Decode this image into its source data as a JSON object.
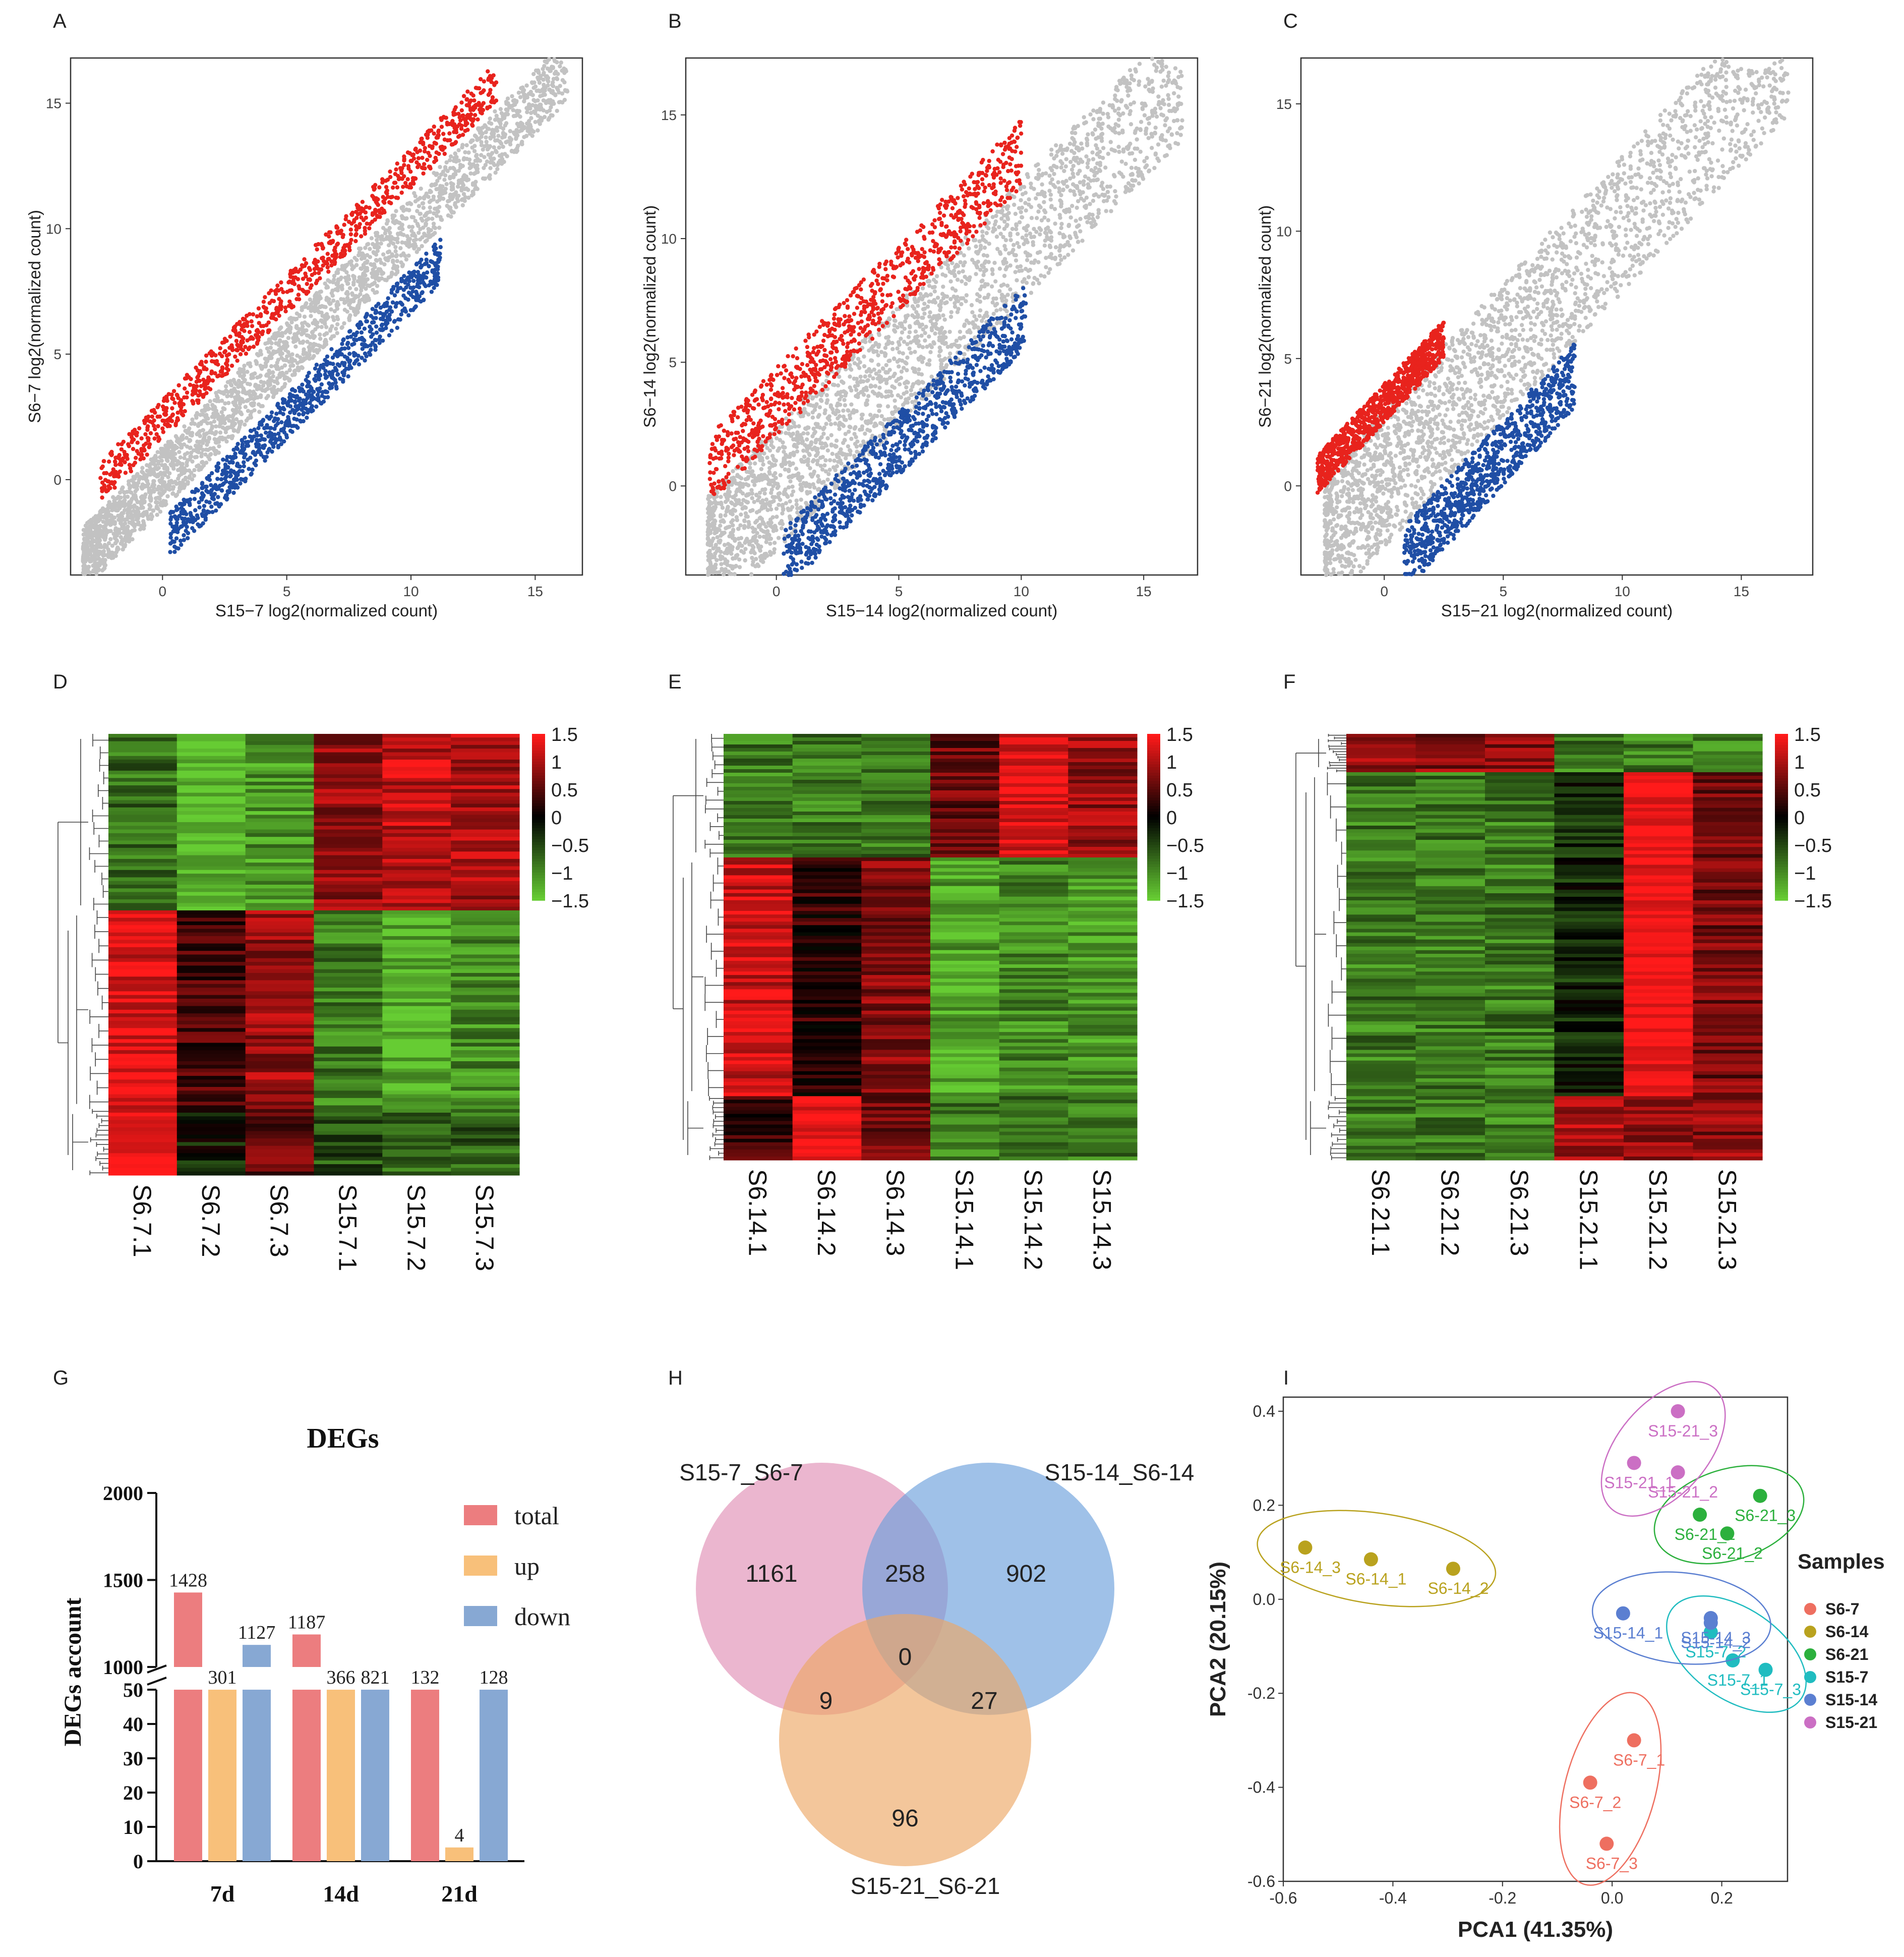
{
  "panel_letters": [
    "A",
    "B",
    "C",
    "D",
    "E",
    "F",
    "G",
    "H",
    "I"
  ],
  "colors": {
    "up": "#e8231d",
    "down": "#1f4ea5",
    "ns": "#c2c2c2",
    "heat_high": "#ff1a1a",
    "heat_mid": "#000000",
    "heat_low": "#66cc33"
  },
  "chart_data": [
    {
      "panel": "A",
      "type": "scatter",
      "xlabel": "S15−7 log2(normalized count)",
      "ylabel": "S6−7 log2(normalized count)",
      "xlim": [
        -3.7,
        16.9
      ],
      "ylim": [
        -3.8,
        16.8
      ],
      "xticks": [
        0,
        5,
        10,
        15
      ],
      "yticks": [
        0,
        5,
        10,
        15
      ],
      "grid": false,
      "series": [
        {
          "group": "ns",
          "band": {
            "x": [
              -3.2,
              16.3
            ],
            "offset": [
              -1.2,
              1.3
            ]
          }
        },
        {
          "group": "up",
          "band": {
            "x": [
              -2.5,
              13.5
            ],
            "offset": [
              1.6,
              3.2
            ]
          }
        },
        {
          "group": "down",
          "band": {
            "x": [
              0.3,
              11.2
            ],
            "offset": [
              -3.4,
              -1.6
            ]
          }
        }
      ]
    },
    {
      "panel": "B",
      "type": "scatter",
      "xlabel": "S15−14 log2(normalized count)",
      "ylabel": "S6−14 log2(normalized count)",
      "xlim": [
        -3.7,
        17.2
      ],
      "ylim": [
        -3.6,
        17.3
      ],
      "xticks": [
        0,
        5,
        10,
        15
      ],
      "yticks": [
        0,
        5,
        10,
        15
      ],
      "grid": false,
      "series": [
        {
          "group": "ns",
          "band": {
            "x": [
              -2.8,
              16.6
            ],
            "offset": [
              -2.6,
              2.4
            ]
          }
        },
        {
          "group": "up",
          "band": {
            "x": [
              -2.8,
              10.0
            ],
            "offset": [
              2.0,
              4.8
            ]
          }
        },
        {
          "group": "down",
          "band": {
            "x": [
              0.3,
              10.2
            ],
            "offset": [
              -4.6,
              -2.0
            ]
          }
        }
      ]
    },
    {
      "panel": "C",
      "type": "scatter",
      "xlabel": "S15−21 log2(normalized count)",
      "ylabel": "S6−21 log2(normalized count)",
      "xlim": [
        -3.5,
        18.0
      ],
      "ylim": [
        -3.5,
        16.8
      ],
      "xticks": [
        0,
        5,
        10,
        15
      ],
      "yticks": [
        0,
        5,
        10,
        15
      ],
      "grid": false,
      "series": [
        {
          "group": "ns",
          "band": {
            "x": [
              -2.5,
              17.0
            ],
            "offset": [
              -2.4,
              3.0
            ]
          }
        },
        {
          "group": "up",
          "band": {
            "x": [
              -2.8,
              2.5
            ],
            "offset": [
              2.5,
              4.0
            ]
          }
        },
        {
          "group": "down",
          "band": {
            "x": [
              0.8,
              8.0
            ],
            "offset": [
              -5.0,
              -2.4
            ]
          }
        }
      ]
    },
    {
      "panel": "D",
      "type": "heatmap",
      "columns": [
        "S6.7.1",
        "S6.7.2",
        "S6.7.3",
        "S15.7.1",
        "S15.7.2",
        "S15.7.3"
      ],
      "legend_ticks": [
        "1.5",
        "1",
        "0.5",
        "0",
        "−0.5",
        "−1",
        "−1.5"
      ],
      "blocks": [
        {
          "fraction": 0.4,
          "values": [
            -0.8,
            -1.4,
            -1.1,
            0.9,
            1.1,
            1.0
          ]
        },
        {
          "fraction": 0.45,
          "values": [
            1.3,
            0.4,
            0.9,
            -0.9,
            -1.3,
            -1.0
          ]
        },
        {
          "fraction": 0.15,
          "values": [
            1.5,
            -0.2,
            0.6,
            -0.6,
            -0.8,
            -0.7
          ]
        }
      ]
    },
    {
      "panel": "E",
      "type": "heatmap",
      "columns": [
        "S6.14.1",
        "S6.14.2",
        "S6.14.3",
        "S15.14.1",
        "S15.14.2",
        "S15.14.3"
      ],
      "legend_ticks": [
        "1.5",
        "1",
        "0.5",
        "0",
        "−0.5",
        "−1",
        "−1.5"
      ],
      "blocks": [
        {
          "fraction": 0.29,
          "values": [
            -0.9,
            -0.9,
            -0.9,
            0.6,
            1.3,
            0.9
          ]
        },
        {
          "fraction": 0.56,
          "values": [
            1.2,
            0.3,
            0.8,
            -1.2,
            -1.0,
            -1.1
          ]
        },
        {
          "fraction": 0.15,
          "values": [
            0.3,
            1.5,
            0.7,
            -0.9,
            -0.9,
            -0.9
          ]
        }
      ]
    },
    {
      "panel": "F",
      "type": "heatmap",
      "columns": [
        "S6.21.1",
        "S6.21.2",
        "S6.21.3",
        "S15.21.1",
        "S15.21.2",
        "S15.21.3"
      ],
      "legend_ticks": [
        "1.5",
        "1",
        "0.5",
        "0",
        "−0.5",
        "−1",
        "−1.5"
      ],
      "blocks": [
        {
          "fraction": 0.09,
          "values": [
            0.9,
            0.8,
            0.8,
            -0.9,
            -0.9,
            -0.9
          ]
        },
        {
          "fraction": 0.76,
          "values": [
            -0.9,
            -0.9,
            -0.9,
            -0.3,
            1.5,
            0.7
          ]
        },
        {
          "fraction": 0.15,
          "values": [
            -0.9,
            -0.9,
            -0.9,
            1.0,
            0.8,
            0.8
          ]
        }
      ]
    },
    {
      "panel": "G",
      "type": "bar",
      "title": "DEGs",
      "ylabel": "DEGs account",
      "categories": [
        "7d",
        "14d",
        "21d"
      ],
      "series": [
        {
          "name": "total",
          "color": "#ec7d7f",
          "values": [
            1428,
            1187,
            132
          ]
        },
        {
          "name": "up",
          "color": "#f8c07a",
          "values": [
            301,
            366,
            4
          ]
        },
        {
          "name": "down",
          "color": "#87a8d3",
          "values": [
            1127,
            821,
            128
          ]
        }
      ],
      "axis_break": {
        "lower": [
          0,
          50
        ],
        "upper": [
          1000,
          2000
        ]
      },
      "lower_ticks": [
        "0",
        "10",
        "20",
        "30",
        "40",
        "50"
      ],
      "upper_ticks": [
        "1000",
        "1500",
        "2000"
      ],
      "legend": "top-right"
    },
    {
      "panel": "H",
      "type": "venn",
      "sets": [
        "S15-7_S6-7",
        "S15-14_S6-14",
        "S15-21_S6-21"
      ],
      "set_colors": [
        "#e08fb6",
        "#6b9fdc",
        "#eda865"
      ],
      "regions": {
        "only_1": "1161",
        "only_2": "902",
        "only_3": "96",
        "1_2": "258",
        "1_3": "9",
        "2_3": "27",
        "all": "0"
      }
    },
    {
      "panel": "I",
      "type": "scatter",
      "xlabel": "PCA1 (41.35%)",
      "ylabel": "PCA2 (20.15%)",
      "xlim": [
        -0.6,
        0.32
      ],
      "ylim": [
        -0.6,
        0.43
      ],
      "xticks": [
        "-0.6",
        "-0.4",
        "-0.2",
        "0.0",
        "0.2"
      ],
      "yticks": [
        "-0.6",
        "-0.4",
        "-0.2",
        "0.0",
        "0.2",
        "0.4"
      ],
      "legend_title": "Samples",
      "groups": [
        {
          "name": "S6-7",
          "color": "#ee6f60",
          "points": [
            {
              "label": "S6-7_1",
              "x": 0.04,
              "y": -0.3
            },
            {
              "label": "S6-7_2",
              "x": -0.04,
              "y": -0.39
            },
            {
              "label": "S6-7_3",
              "x": -0.01,
              "y": -0.52
            }
          ]
        },
        {
          "name": "S6-14",
          "color": "#b9a21e",
          "points": [
            {
              "label": "S6-14_3",
              "x": -0.56,
              "y": 0.11
            },
            {
              "label": "S6-14_1",
              "x": -0.44,
              "y": 0.085
            },
            {
              "label": "S6-14_2",
              "x": -0.29,
              "y": 0.065
            }
          ]
        },
        {
          "name": "S6-21",
          "color": "#2cb03d",
          "points": [
            {
              "label": "S6-21_3",
              "x": 0.27,
              "y": 0.22
            },
            {
              "label": "S6-21_1",
              "x": 0.16,
              "y": 0.18
            },
            {
              "label": "S6-21_2",
              "x": 0.21,
              "y": 0.14
            }
          ]
        },
        {
          "name": "S15-7",
          "color": "#20bcc0",
          "points": [
            {
              "label": "S15-7_1",
              "x": 0.22,
              "y": -0.13
            },
            {
              "label": "S15-7_3",
              "x": 0.28,
              "y": -0.15
            },
            {
              "label": "S15-7_2",
              "x": 0.18,
              "y": -0.07
            }
          ]
        },
        {
          "name": "S15-14",
          "color": "#5b7fd1",
          "points": [
            {
              "label": "S15-14_1",
              "x": 0.02,
              "y": -0.03
            },
            {
              "label": "S15-14_2",
              "x": 0.18,
              "y": -0.05
            },
            {
              "label": "S15-14_3",
              "x": 0.18,
              "y": -0.04
            }
          ]
        },
        {
          "name": "S15-21",
          "color": "#cb6fc4",
          "points": [
            {
              "label": "S15-21_3",
              "x": 0.12,
              "y": 0.4
            },
            {
              "label": "S15-21_1",
              "x": 0.04,
              "y": 0.29
            },
            {
              "label": "S15-21_2",
              "x": 0.12,
              "y": 0.27
            }
          ]
        }
      ]
    }
  ]
}
